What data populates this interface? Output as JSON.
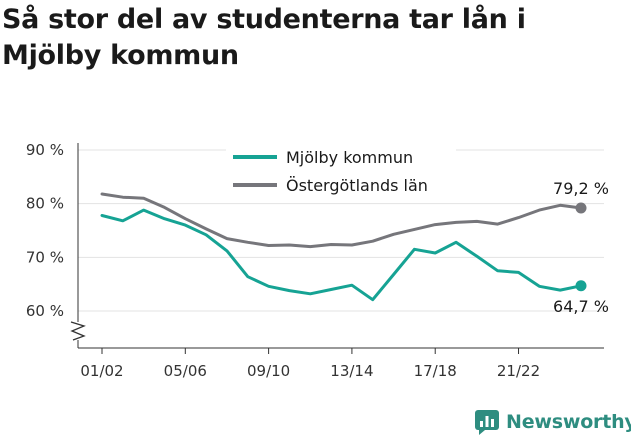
{
  "title": "Så stor del av studenterna tar lån i Mjölby kommun",
  "brand": {
    "name": "Newsworthy",
    "icon": "newsworthy-logo-icon",
    "color": "#2e8d80"
  },
  "chart_data": {
    "type": "line",
    "title": "Så stor del av studenterna tar lån i Mjölby kommun",
    "xlabel": "",
    "ylabel": "",
    "ylim": [
      55,
      92
    ],
    "y_ticks": [
      {
        "value": 60,
        "label": "60 %"
      },
      {
        "value": 70,
        "label": "70 %"
      },
      {
        "value": 80,
        "label": "80 %"
      },
      {
        "value": 90,
        "label": "90 %"
      }
    ],
    "y_axis_break": true,
    "grid": true,
    "legend_position": "top-center",
    "x": [
      "01/02",
      "02/03",
      "03/04",
      "04/05",
      "05/06",
      "06/07",
      "07/08",
      "08/09",
      "09/10",
      "10/11",
      "11/12",
      "12/13",
      "13/14",
      "14/15",
      "15/16",
      "16/17",
      "17/18",
      "18/19",
      "19/20",
      "20/21",
      "21/22",
      "22/23",
      "23/24",
      "24/25"
    ],
    "x_tick_labels": [
      "01/02",
      "05/06",
      "09/10",
      "13/14",
      "17/18",
      "21/22"
    ],
    "series": [
      {
        "name": "Mjölby kommun",
        "color": "#16a394",
        "values": [
          77.8,
          76.8,
          78.8,
          77.2,
          76.0,
          74.2,
          71.2,
          66.4,
          64.6,
          63.8,
          63.2,
          64.0,
          64.8,
          62.1,
          66.8,
          71.5,
          70.8,
          72.8,
          70.2,
          67.5,
          67.2,
          64.6,
          63.9,
          64.7
        ],
        "end_label": "64,7 %"
      },
      {
        "name": "Östergötlands län",
        "color": "#76767b",
        "values": [
          81.8,
          81.2,
          81.0,
          79.3,
          77.2,
          75.3,
          73.5,
          72.8,
          72.2,
          72.3,
          72.0,
          72.4,
          72.3,
          73.0,
          74.3,
          75.2,
          76.1,
          76.5,
          76.7,
          76.2,
          77.4,
          78.8,
          79.7,
          79.2
        ],
        "end_label": "79,2 %"
      }
    ]
  }
}
